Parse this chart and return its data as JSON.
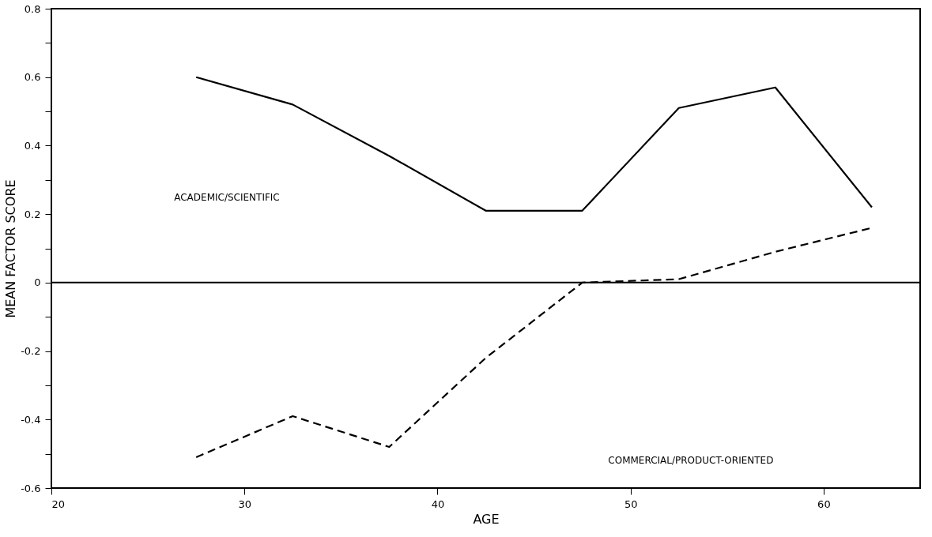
{
  "chart_data": {
    "type": "line",
    "xlabel": "AGE",
    "ylabel": "MEAN FACTOR SCORE",
    "x": [
      27.5,
      32.5,
      37.5,
      42.5,
      47.5,
      52.5,
      57.5,
      62.5
    ],
    "series": [
      {
        "color": "#000000",
        "line_style": "solid",
        "values": [
          0.6,
          0.52,
          0.37,
          0.21,
          0.21,
          0.51,
          0.57,
          0.22
        ]
      },
      {
        "color": "#000000",
        "line_style": "dashed",
        "values": [
          -0.51,
          -0.39,
          -0.48,
          -0.22,
          0.0,
          0.01,
          0.09,
          0.16
        ]
      }
    ],
    "xlim": [
      20,
      65
    ],
    "xticks": [
      20,
      30,
      40,
      50,
      60
    ],
    "ylim": [
      -0.6,
      0.8
    ],
    "yticks": [
      {
        "value": -0.6,
        "label": "-0.6"
      },
      {
        "value": -0.5,
        "label": null
      },
      {
        "value": -0.4,
        "label": "-0.4"
      },
      {
        "value": -0.3,
        "label": null
      },
      {
        "value": -0.2,
        "label": "-0.2"
      },
      {
        "value": -0.1,
        "label": null
      },
      0,
      {
        "value": 0.1,
        "label": null
      },
      {
        "value": 0.2,
        "label": "0.2"
      },
      {
        "value": 0.3,
        "label": null
      },
      {
        "value": 0.4,
        "label": "0.4"
      },
      {
        "value": 0.5,
        "label": null
      },
      {
        "value": 0.6,
        "label": "0.6"
      },
      {
        "value": 0.7,
        "label": null
      },
      {
        "value": 0.8,
        "label": "0.8"
      }
    ],
    "ref_lines": [
      {
        "axis": "y",
        "value": 0,
        "color": "#000000",
        "line_style": "solid"
      }
    ],
    "annotations": [
      "ACADEMIC/SCIENTIFIC",
      "COMMERCIAL/PRODUCT-ORIENTED"
    ],
    "grid": false,
    "marker": "none"
  }
}
